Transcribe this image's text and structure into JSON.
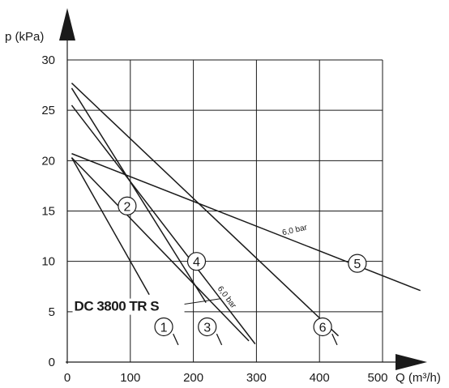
{
  "chart_data": {
    "type": "line",
    "xlabel": "Q (m³/h)",
    "ylabel": "p (kPa)",
    "xlim": [
      0,
      500
    ],
    "ylim": [
      0,
      30
    ],
    "x_ticks": [
      "0",
      "100",
      "200",
      "300",
      "400",
      "500"
    ],
    "y_ticks": [
      "0",
      "5",
      "10",
      "15",
      "20",
      "25",
      "30"
    ],
    "grid": true,
    "series": [
      {
        "name": "1",
        "points": [
          [
            7,
            20.3
          ],
          [
            130,
            6.7
          ]
        ]
      },
      {
        "name": "2",
        "points": [
          [
            7,
            20.3
          ],
          [
            288,
            2.1
          ]
        ]
      },
      {
        "name": "3",
        "points": [
          [
            7,
            27.2
          ],
          [
            220,
            5.9
          ]
        ]
      },
      {
        "name": "4",
        "points": [
          [
            7,
            25.5
          ],
          [
            298,
            1.8
          ]
        ]
      },
      {
        "name": "5",
        "points": [
          [
            7,
            20.7
          ],
          [
            560,
            7.1
          ]
        ]
      },
      {
        "name": "6",
        "points": [
          [
            7,
            27.7
          ],
          [
            430,
            2.6
          ]
        ]
      }
    ],
    "markers": [
      {
        "label": "1",
        "x": 153,
        "y": 3.5,
        "tick": [
          [
            168,
            2.8
          ],
          [
            176,
            1.7
          ]
        ]
      },
      {
        "label": "2",
        "x": 95,
        "y": 15.5,
        "tick": null
      },
      {
        "label": "3",
        "x": 222,
        "y": 3.5,
        "tick": [
          [
            237,
            2.8
          ],
          [
            245,
            1.7
          ]
        ]
      },
      {
        "label": "4",
        "x": 205,
        "y": 10,
        "tick": null
      },
      {
        "label": "5",
        "x": 460,
        "y": 9.8,
        "tick": null
      },
      {
        "label": "6",
        "x": 405,
        "y": 3.5,
        "tick": [
          [
            420,
            2.8
          ],
          [
            428,
            1.7
          ]
        ]
      }
    ],
    "annotations": [
      {
        "text": "6,0 bar",
        "x": 342,
        "y": 12.6,
        "angle": -13
      },
      {
        "text": "6,0 bar",
        "x": 238,
        "y": 7.3,
        "angle": 53
      },
      {
        "text": "DC 3800 TR S",
        "x": 11,
        "y": 5.1,
        "bold": true
      }
    ],
    "pointer_line": [
      [
        148,
        5.4
      ],
      [
        244,
        6.3
      ]
    ]
  }
}
